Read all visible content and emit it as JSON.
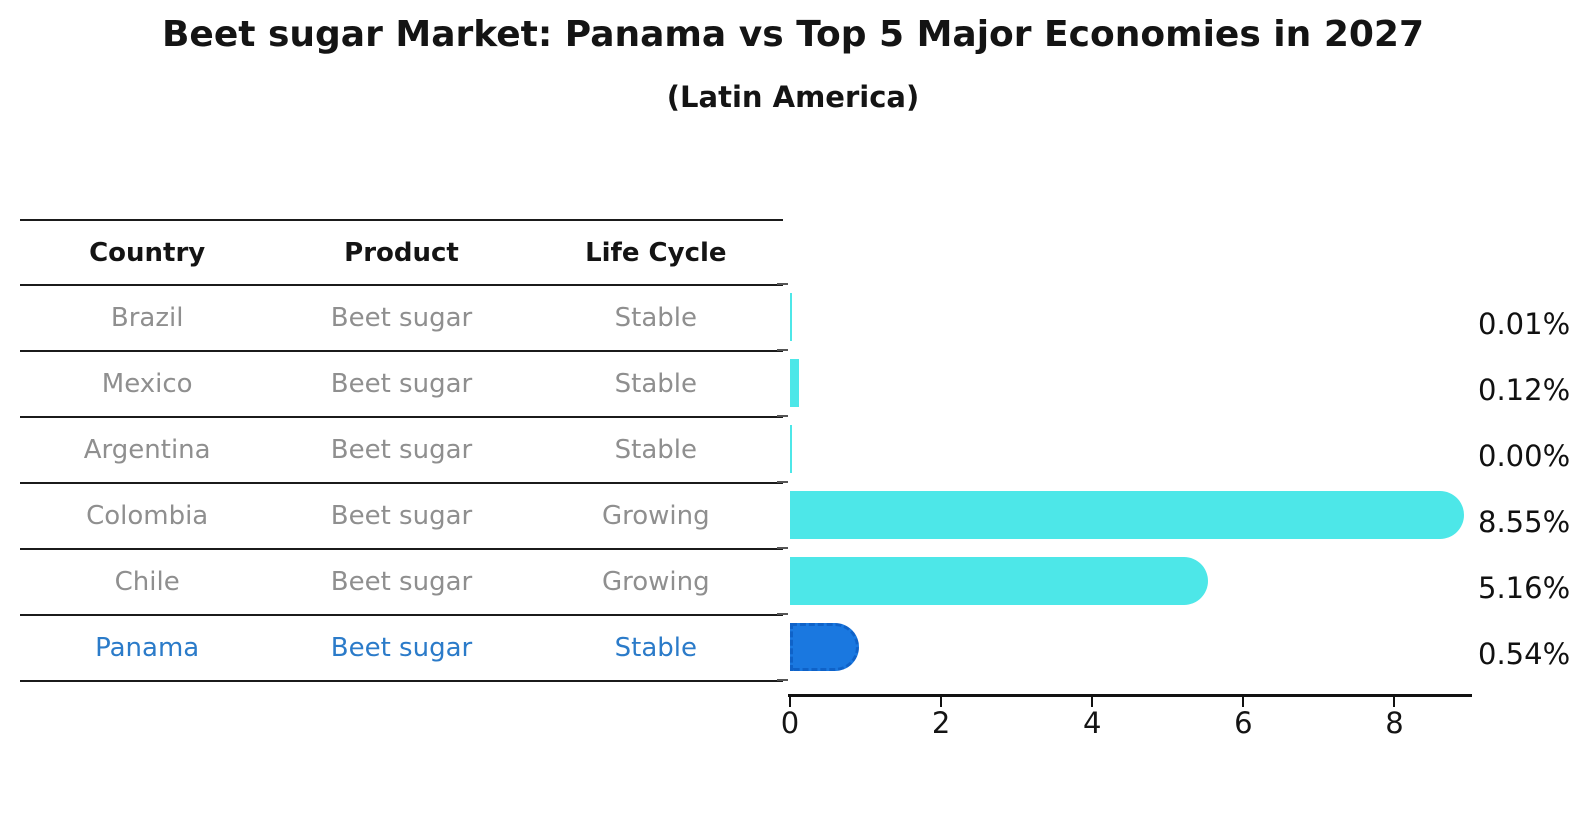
{
  "title": "Beet sugar Market: Panama vs Top 5 Major Economies in 2027",
  "subtitle": "(Latin America)",
  "table": {
    "headers": [
      "Country",
      "Product",
      "Life Cycle"
    ],
    "rows": [
      {
        "country": "Brazil",
        "product": "Beet sugar",
        "life_cycle": "Stable",
        "highlight": false
      },
      {
        "country": "Mexico",
        "product": "Beet sugar",
        "life_cycle": "Stable",
        "highlight": false
      },
      {
        "country": "Argentina",
        "product": "Beet sugar",
        "life_cycle": "Stable",
        "highlight": false
      },
      {
        "country": "Colombia",
        "product": "Beet sugar",
        "life_cycle": "Growing",
        "highlight": false
      },
      {
        "country": "Chile",
        "product": "Beet sugar",
        "life_cycle": "Growing",
        "highlight": false
      },
      {
        "country": "Panama",
        "product": "Beet sugar",
        "life_cycle": "Stable",
        "highlight": true
      }
    ]
  },
  "chart_data": {
    "type": "bar",
    "orientation": "horizontal",
    "title": "Beet sugar Market: Panama vs Top 5 Major Economies in 2027",
    "subtitle": "(Latin America)",
    "categories": [
      "Brazil",
      "Mexico",
      "Argentina",
      "Colombia",
      "Chile",
      "Panama"
    ],
    "values": [
      0.01,
      0.12,
      0.0,
      8.55,
      5.16,
      0.54
    ],
    "value_labels": [
      "0.01%",
      "0.12%",
      "0.00%",
      "8.55%",
      "5.16%",
      "0.54%"
    ],
    "xlim": [
      0,
      9
    ],
    "xtick_labels": [
      "0",
      "2",
      "4",
      "6",
      "8"
    ],
    "xticks": [
      0,
      2,
      4,
      6,
      8
    ],
    "grid": false,
    "legend": false,
    "highlight_category": "Panama",
    "highlight_index": 5
  },
  "colors": {
    "bar": "#4de7e8",
    "highlight_bar": "#1a78e0",
    "highlight_border": "#0f62c8",
    "highlight_text": "#2b7bc9",
    "row_text": "#8f8f8f",
    "header_text": "#141414",
    "axis": "#111111"
  }
}
